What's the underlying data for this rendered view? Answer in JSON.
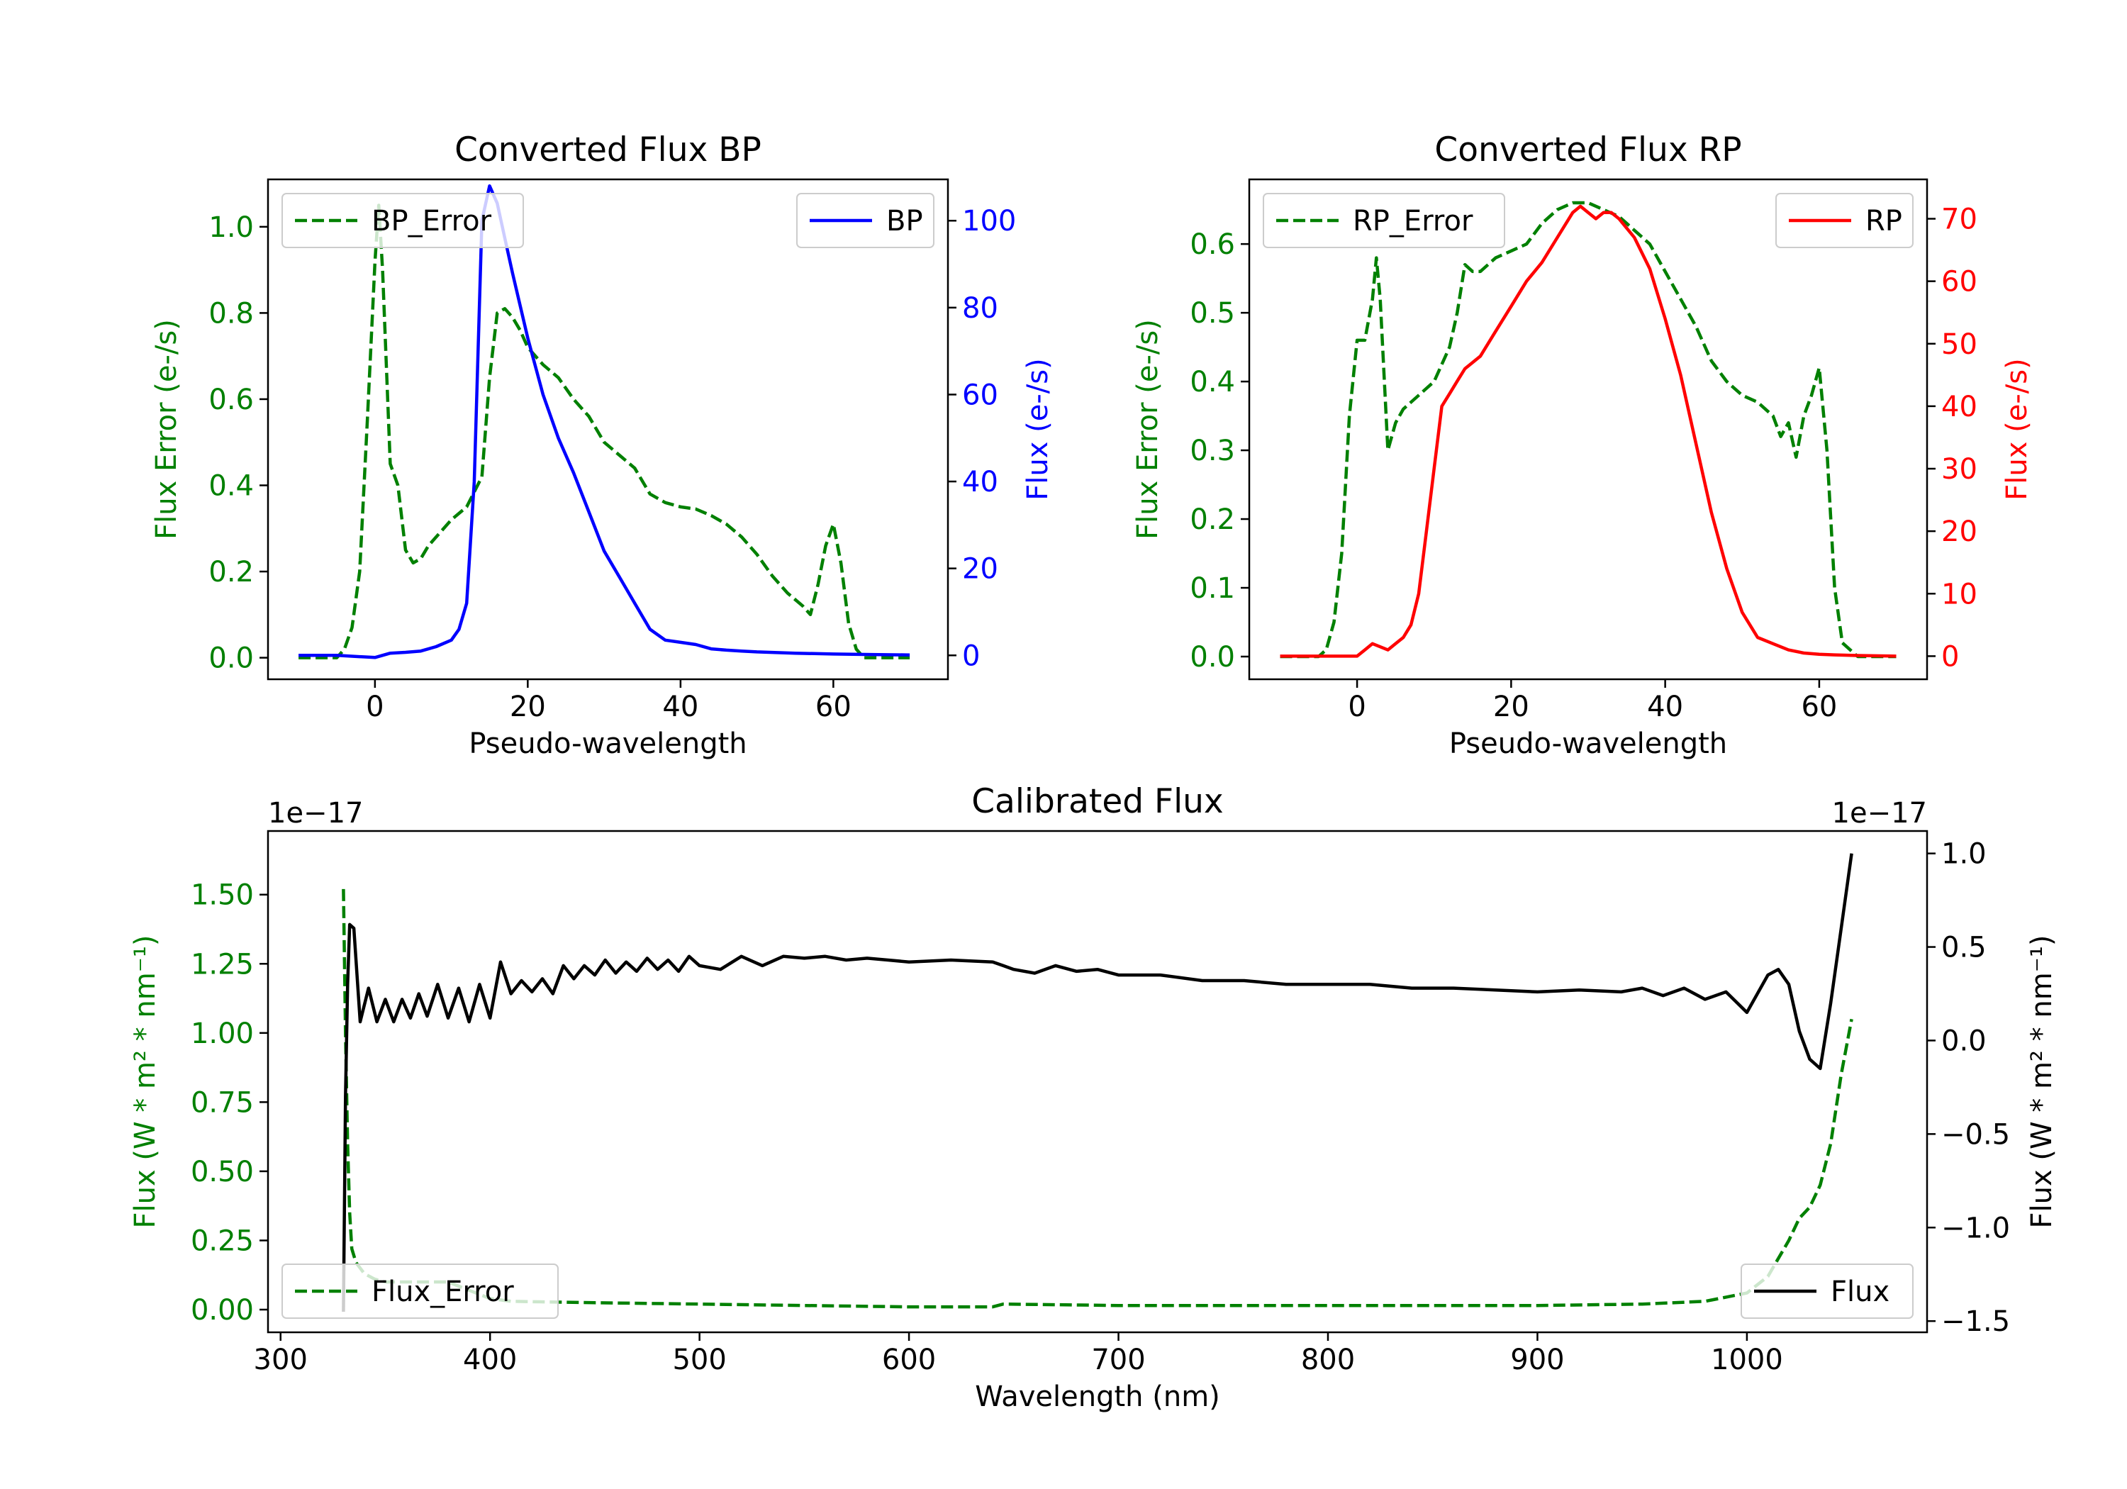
{
  "colors": {
    "axis": "#000000",
    "error_green": "#008000",
    "bp_blue": "#0000ff",
    "rp_red": "#ff0000",
    "flux_black": "#000000"
  },
  "chart_data": [
    {
      "id": "bp",
      "type": "line",
      "title": "Converted Flux BP",
      "xlabel": "Pseudo-wavelength",
      "ylabel_left": "Flux Error (e-/s)",
      "ylabel_right": "Flux (e-/s)",
      "xlim": [
        -14,
        75
      ],
      "ylim_left": [
        -0.05,
        1.11
      ],
      "ylim_right": [
        -5.5,
        109.5
      ],
      "xticks": [
        0,
        20,
        40,
        60
      ],
      "yticks_left": [
        0.0,
        0.2,
        0.4,
        0.6,
        0.8,
        1.0
      ],
      "yticks_left_labels": [
        "0.0",
        "0.2",
        "0.4",
        "0.6",
        "0.8",
        "1.0"
      ],
      "yticks_right": [
        0,
        20,
        40,
        60,
        80,
        100
      ],
      "yticks_right_labels": [
        "0",
        "20",
        "40",
        "60",
        "80",
        "100"
      ],
      "legend_left_location": "upper-left",
      "legend_right_location": "upper-right",
      "series": [
        {
          "name": "BP_Error",
          "axis": "left",
          "style": "dashed",
          "color": "#008000",
          "x": [
            -10,
            -5,
            -4,
            -3,
            -2,
            -1,
            0,
            0.5,
            1,
            2,
            3,
            4,
            5,
            6,
            7,
            8,
            10,
            12,
            14,
            15,
            16,
            17,
            18,
            19,
            20,
            22,
            24,
            26,
            28,
            30,
            32,
            34,
            36,
            38,
            40,
            42,
            44,
            46,
            48,
            50,
            52,
            54,
            56,
            57,
            58,
            59,
            60,
            61,
            62,
            63,
            64,
            66,
            70
          ],
          "y": [
            0.0,
            0.0,
            0.02,
            0.07,
            0.2,
            0.55,
            0.92,
            1.05,
            0.9,
            0.45,
            0.4,
            0.25,
            0.22,
            0.23,
            0.26,
            0.28,
            0.32,
            0.35,
            0.42,
            0.65,
            0.8,
            0.81,
            0.79,
            0.76,
            0.72,
            0.68,
            0.65,
            0.6,
            0.56,
            0.5,
            0.47,
            0.44,
            0.38,
            0.36,
            0.35,
            0.345,
            0.33,
            0.31,
            0.28,
            0.24,
            0.19,
            0.15,
            0.12,
            0.1,
            0.17,
            0.26,
            0.31,
            0.22,
            0.08,
            0.02,
            0.0,
            0.0,
            0.0
          ]
        },
        {
          "name": "BP",
          "axis": "right",
          "style": "solid",
          "color": "#0000ff",
          "x": [
            -10,
            -5,
            0,
            2,
            4,
            6,
            8,
            10,
            11,
            12,
            13,
            14,
            15,
            16,
            17,
            18,
            20,
            22,
            24,
            26,
            28,
            30,
            32,
            34,
            36,
            38,
            40,
            42,
            44,
            46,
            48,
            50,
            55,
            60,
            65,
            70
          ],
          "y": [
            0,
            0,
            -0.5,
            0.5,
            0.7,
            1,
            2,
            3.5,
            6,
            12,
            40,
            100,
            108,
            104,
            96,
            88,
            73,
            60,
            50,
            42,
            33,
            24,
            18,
            12,
            6,
            3.5,
            3,
            2.5,
            1.5,
            1.2,
            1,
            0.8,
            0.5,
            0.3,
            0.2,
            0.1
          ]
        }
      ]
    },
    {
      "id": "rp",
      "type": "line",
      "title": "Converted Flux RP",
      "xlabel": "Pseudo-wavelength",
      "ylabel_left": "Flux Error (e-/s)",
      "ylabel_right": "Flux (e-/s)",
      "xlim": [
        -14,
        74
      ],
      "ylim_left": [
        -0.033,
        0.694
      ],
      "ylim_right": [
        -3.7,
        76.3
      ],
      "xticks": [
        0,
        20,
        40,
        60
      ],
      "yticks_left": [
        0.0,
        0.1,
        0.2,
        0.3,
        0.4,
        0.5,
        0.6
      ],
      "yticks_left_labels": [
        "0.0",
        "0.1",
        "0.2",
        "0.3",
        "0.4",
        "0.5",
        "0.6"
      ],
      "yticks_right": [
        0,
        10,
        20,
        30,
        40,
        50,
        60,
        70
      ],
      "yticks_right_labels": [
        "0",
        "10",
        "20",
        "30",
        "40",
        "50",
        "60",
        "70"
      ],
      "legend_left_location": "upper-left",
      "legend_right_location": "upper-right",
      "series": [
        {
          "name": "RP_Error",
          "axis": "left",
          "style": "dashed",
          "color": "#008000",
          "x": [
            -10,
            -5,
            -4,
            -3,
            -2,
            -1,
            0,
            1,
            2,
            2.5,
            3,
            4,
            5,
            6,
            8,
            10,
            12,
            13,
            14,
            15,
            16,
            18,
            20,
            22,
            24,
            26,
            28,
            30,
            32,
            34,
            36,
            38,
            40,
            42,
            44,
            46,
            48,
            50,
            52,
            54,
            55,
            56,
            57,
            58,
            59,
            60,
            61,
            62,
            63,
            65,
            70
          ],
          "y": [
            0.0,
            0.0,
            0.01,
            0.05,
            0.15,
            0.35,
            0.46,
            0.46,
            0.52,
            0.58,
            0.52,
            0.3,
            0.34,
            0.36,
            0.38,
            0.4,
            0.45,
            0.5,
            0.57,
            0.56,
            0.56,
            0.58,
            0.59,
            0.6,
            0.63,
            0.65,
            0.66,
            0.66,
            0.65,
            0.64,
            0.62,
            0.6,
            0.56,
            0.52,
            0.48,
            0.43,
            0.4,
            0.38,
            0.37,
            0.35,
            0.32,
            0.34,
            0.29,
            0.35,
            0.38,
            0.42,
            0.3,
            0.1,
            0.02,
            0.0,
            0.0
          ]
        },
        {
          "name": "RP",
          "axis": "right",
          "style": "solid",
          "color": "#ff0000",
          "x": [
            -10,
            -5,
            -2,
            0,
            1,
            2,
            3,
            4,
            5,
            6,
            7,
            8,
            9,
            10,
            11,
            12,
            13,
            14,
            15,
            16,
            18,
            20,
            22,
            24,
            26,
            28,
            29,
            30,
            31,
            32,
            33,
            34,
            36,
            38,
            40,
            42,
            44,
            46,
            48,
            50,
            52,
            54,
            56,
            58,
            60,
            62,
            65,
            70
          ],
          "y": [
            0,
            0,
            0,
            0,
            1,
            2,
            1.5,
            1,
            2,
            3,
            5,
            10,
            20,
            30,
            40,
            42,
            44,
            46,
            47,
            48,
            52,
            56,
            60,
            63,
            67,
            71,
            72,
            71,
            70,
            71,
            71,
            70,
            67,
            62,
            54,
            45,
            34,
            23,
            14,
            7,
            3,
            2,
            1,
            0.5,
            0.3,
            0.2,
            0.1,
            0
          ]
        }
      ]
    },
    {
      "id": "calibrated",
      "type": "line",
      "title": "Calibrated Flux",
      "xlabel": "Wavelength (nm)",
      "ylabel_left": "Flux (W * m² * nm⁻¹)",
      "ylabel_right": "Flux (W * m² * nm⁻¹)",
      "offset_left": "1e−17",
      "offset_right": "1e−17",
      "xlim": [
        294,
        1086
      ],
      "ylim_left": [
        -0.082,
        1.73
      ],
      "ylim_right": [
        -1.56,
        1.12
      ],
      "xticks": [
        300,
        400,
        500,
        600,
        700,
        800,
        900,
        1000
      ],
      "yticks_left": [
        0.0,
        0.25,
        0.5,
        0.75,
        1.0,
        1.25,
        1.5
      ],
      "yticks_left_labels": [
        "0.00",
        "0.25",
        "0.50",
        "0.75",
        "1.00",
        "1.25",
        "1.50"
      ],
      "yticks_right": [
        -1.5,
        -1.0,
        -0.5,
        0.0,
        0.5,
        1.0
      ],
      "yticks_right_labels": [
        "−1.5",
        "−1.0",
        "−0.5",
        "0.0",
        "0.5",
        "1.0"
      ],
      "legend_left_location": "lower-left",
      "legend_right_location": "lower-right",
      "series": [
        {
          "name": "Flux_Error",
          "axis": "left",
          "style": "dashed",
          "color": "#008000",
          "x": [
            330,
            331,
            332,
            333,
            334,
            336,
            340,
            345,
            350,
            360,
            380,
            390,
            400,
            410,
            450,
            500,
            550,
            600,
            640,
            645,
            700,
            800,
            900,
            950,
            980,
            1000,
            1010,
            1020,
            1025,
            1030,
            1035,
            1040,
            1045,
            1050
          ],
          "y": [
            1.52,
            1.0,
            0.6,
            0.35,
            0.22,
            0.17,
            0.13,
            0.11,
            0.1,
            0.1,
            0.1,
            0.07,
            0.04,
            0.03,
            0.025,
            0.02,
            0.015,
            0.01,
            0.01,
            0.02,
            0.015,
            0.015,
            0.015,
            0.02,
            0.03,
            0.06,
            0.12,
            0.25,
            0.33,
            0.37,
            0.45,
            0.6,
            0.85,
            1.05
          ]
        },
        {
          "name": "Flux",
          "axis": "right",
          "style": "solid",
          "color": "#000000",
          "x": [
            330,
            331,
            332,
            333,
            335,
            338,
            342,
            346,
            350,
            354,
            358,
            362,
            366,
            370,
            375,
            380,
            385,
            390,
            395,
            400,
            405,
            410,
            415,
            420,
            425,
            430,
            435,
            440,
            445,
            450,
            455,
            460,
            465,
            470,
            475,
            480,
            485,
            490,
            495,
            500,
            510,
            520,
            530,
            540,
            550,
            560,
            570,
            580,
            590,
            600,
            620,
            640,
            645,
            650,
            660,
            670,
            680,
            690,
            700,
            720,
            740,
            760,
            780,
            800,
            820,
            840,
            860,
            880,
            900,
            920,
            940,
            950,
            960,
            970,
            980,
            990,
            1000,
            1010,
            1015,
            1020,
            1025,
            1030,
            1035,
            1040,
            1045,
            1050
          ],
          "y": [
            -1.45,
            -0.3,
            0.3,
            0.62,
            0.6,
            0.1,
            0.28,
            0.1,
            0.22,
            0.1,
            0.22,
            0.12,
            0.25,
            0.13,
            0.3,
            0.12,
            0.28,
            0.1,
            0.3,
            0.12,
            0.42,
            0.25,
            0.32,
            0.26,
            0.33,
            0.25,
            0.4,
            0.33,
            0.4,
            0.35,
            0.43,
            0.36,
            0.42,
            0.37,
            0.44,
            0.38,
            0.43,
            0.37,
            0.45,
            0.4,
            0.38,
            0.45,
            0.4,
            0.45,
            0.44,
            0.45,
            0.43,
            0.44,
            0.43,
            0.42,
            0.43,
            0.42,
            0.4,
            0.38,
            0.36,
            0.4,
            0.37,
            0.38,
            0.35,
            0.35,
            0.32,
            0.32,
            0.3,
            0.3,
            0.3,
            0.28,
            0.28,
            0.27,
            0.26,
            0.27,
            0.26,
            0.28,
            0.24,
            0.28,
            0.22,
            0.26,
            0.15,
            0.35,
            0.38,
            0.3,
            0.05,
            -0.1,
            -0.15,
            0.2,
            0.6,
            1.0
          ]
        }
      ]
    }
  ]
}
